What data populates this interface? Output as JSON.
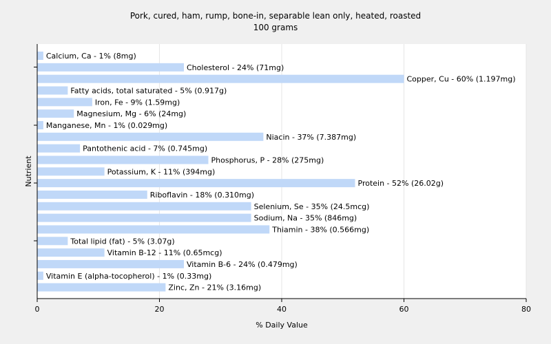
{
  "chart_data": {
    "type": "bar",
    "title": "Pork, cured, ham, rump, bone-in, separable lean only, heated, roasted",
    "subtitle": "100 grams",
    "xlabel": "% Daily Value",
    "ylabel": "Nutrient",
    "xlim": [
      0,
      80
    ],
    "xticks": [
      "0",
      "20",
      "40",
      "60",
      "80"
    ],
    "grid": true,
    "bar_color": "#c0d8f8",
    "categories": [
      "Calcium, Ca - 1% (8mg)",
      "Cholesterol - 24% (71mg)",
      "Copper, Cu - 60% (1.197mg)",
      "Fatty acids, total saturated - 5% (0.917g)",
      "Iron, Fe - 9% (1.59mg)",
      "Magnesium, Mg - 6% (24mg)",
      "Manganese, Mn - 1% (0.029mg)",
      "Niacin - 37% (7.387mg)",
      "Pantothenic acid - 7% (0.745mg)",
      "Phosphorus, P - 28% (275mg)",
      "Potassium, K - 11% (394mg)",
      "Protein - 52% (26.02g)",
      "Riboflavin - 18% (0.310mg)",
      "Selenium, Se - 35% (24.5mcg)",
      "Sodium, Na - 35% (846mg)",
      "Thiamin - 38% (0.566mg)",
      "Total lipid (fat) - 5% (3.07g)",
      "Vitamin B-12 - 11% (0.65mcg)",
      "Vitamin B-6 - 24% (0.479mg)",
      "Vitamin E (alpha-tocopherol) - 1% (0.33mg)",
      "Zinc, Zn - 21% (3.16mg)"
    ],
    "values": [
      1,
      24,
      60,
      5,
      9,
      6,
      1,
      37,
      7,
      28,
      11,
      52,
      18,
      35,
      35,
      38,
      5,
      11,
      24,
      1,
      21
    ]
  }
}
